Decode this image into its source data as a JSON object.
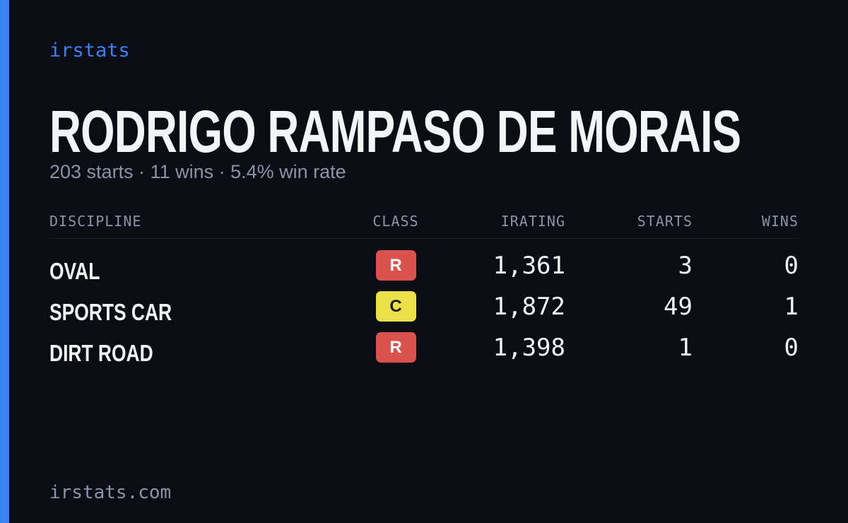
{
  "brand": "irstats",
  "title": "RODRIGO RAMPASO DE MORAIS",
  "subtitle": "203 starts · 11 wins · 5.4% win rate",
  "table": {
    "headers": [
      "DISCIPLINE",
      "CLASS",
      "IRATING",
      "STARTS",
      "WINS"
    ],
    "rows": [
      {
        "discipline": "OVAL",
        "class": "R",
        "badge_color": "#d9534f",
        "irating": "1,361",
        "starts": 3,
        "wins": 0
      },
      {
        "discipline": "SPORTS CAR",
        "class": "C",
        "badge_color": "#ece04a",
        "irating": "1,872",
        "starts": 49,
        "wins": 1
      },
      {
        "discipline": "DIRT ROAD",
        "class": "R",
        "badge_color": "#d9534f",
        "irating": "1,398",
        "starts": 1,
        "wins": 0
      }
    ]
  },
  "footer": "irstats.com"
}
